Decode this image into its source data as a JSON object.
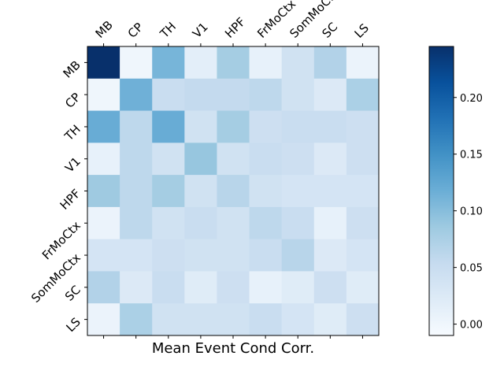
{
  "chart_data": {
    "type": "heatmap",
    "xlabel": "Mean Event Cond Corr.",
    "x_tick_labels": [
      "MB",
      "CP",
      "TH",
      "V1",
      "HPF",
      "FrMoCtx",
      "SomMoCtx",
      "SC",
      "LS"
    ],
    "y_tick_labels": [
      "MB",
      "CP",
      "TH",
      "V1",
      "HPF",
      "FrMoCtx",
      "SomMoCtx",
      "SC",
      "LS"
    ],
    "matrix": [
      [
        0.245,
        0.0,
        0.11,
        0.015,
        0.08,
        0.01,
        0.04,
        0.07,
        0.005
      ],
      [
        0.0,
        0.115,
        0.05,
        0.055,
        0.055,
        0.06,
        0.04,
        0.025,
        0.075
      ],
      [
        0.12,
        0.06,
        0.12,
        0.04,
        0.08,
        0.045,
        0.05,
        0.05,
        0.045
      ],
      [
        0.01,
        0.06,
        0.04,
        0.09,
        0.04,
        0.05,
        0.045,
        0.025,
        0.045
      ],
      [
        0.085,
        0.06,
        0.08,
        0.04,
        0.065,
        0.04,
        0.035,
        0.035,
        0.035
      ],
      [
        0.005,
        0.06,
        0.04,
        0.05,
        0.04,
        0.06,
        0.05,
        0.01,
        0.045
      ],
      [
        0.035,
        0.035,
        0.045,
        0.04,
        0.04,
        0.05,
        0.065,
        0.025,
        0.035
      ],
      [
        0.07,
        0.025,
        0.05,
        0.02,
        0.045,
        0.01,
        0.02,
        0.045,
        0.02
      ],
      [
        0.005,
        0.075,
        0.04,
        0.04,
        0.04,
        0.05,
        0.035,
        0.02,
        0.045
      ]
    ],
    "colorbar": {
      "cmap": "Blues",
      "vmin": -0.01,
      "vmax": 0.245,
      "ticks": [
        0.0,
        0.05,
        0.1,
        0.15,
        0.2
      ],
      "tick_labels": [
        "0.00",
        "0.05",
        "0.10",
        "0.15",
        "0.20"
      ]
    }
  }
}
